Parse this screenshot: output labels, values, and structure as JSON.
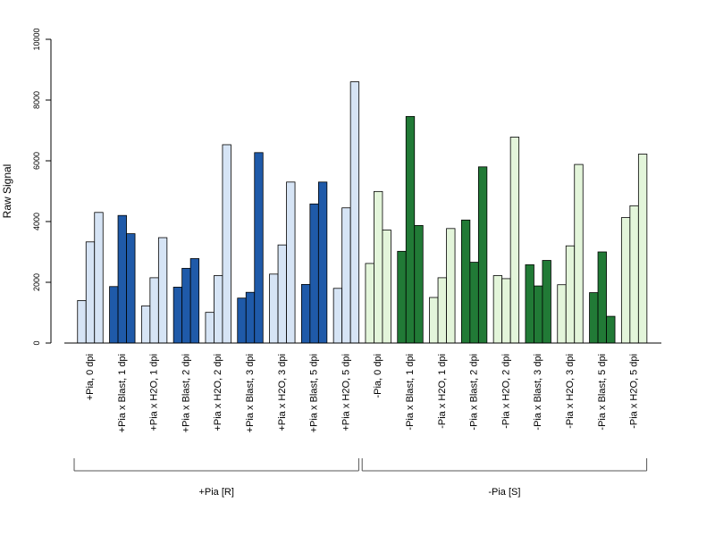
{
  "chart_data": {
    "type": "bar",
    "ylabel": "Raw Signal",
    "ylim": [
      0,
      10000
    ],
    "yticks": [
      0,
      2000,
      4000,
      6000,
      8000,
      10000
    ],
    "grid": false,
    "colors": {
      "light_blue": "#d6e4f5",
      "dark_blue": "#1f5aa9",
      "light_green": "#e3f5da",
      "dark_green": "#217a36",
      "border": "#000000"
    },
    "categories": [
      "+Pia, 0 dpi",
      "+Pia x Blast, 1 dpi",
      "+Pia x H2O, 1 dpi",
      "+Pia x Blast, 2 dpi",
      "+Pia x H2O, 2 dpi",
      "+Pia x Blast, 3 dpi",
      "+Pia x H2O, 3 dpi",
      "+Pia x Blast, 5 dpi",
      "+Pia x H2O, 5 dpi",
      "-Pia, 0 dpi",
      "-Pia x Blast, 1 dpi",
      "-Pia x H2O, 1 dpi",
      "-Pia x Blast, 2 dpi",
      "-Pia x H2O, 2 dpi",
      "-Pia x Blast, 3 dpi",
      "-Pia x H2O, 3 dpi",
      "-Pia x Blast, 5 dpi",
      "-Pia x H2O, 5 dpi"
    ],
    "bar_colors": [
      "light_blue",
      "dark_blue",
      "light_blue",
      "dark_blue",
      "light_blue",
      "dark_blue",
      "light_blue",
      "dark_blue",
      "light_blue",
      "light_green",
      "dark_green",
      "light_green",
      "dark_green",
      "light_green",
      "dark_green",
      "light_green",
      "dark_green",
      "light_green"
    ],
    "values": [
      [
        1400,
        3330,
        4300
      ],
      [
        1860,
        4200,
        3600
      ],
      [
        1220,
        2150,
        3470
      ],
      [
        1840,
        2460,
        2780
      ],
      [
        1010,
        2220,
        6530
      ],
      [
        1480,
        1670,
        6270
      ],
      [
        2270,
        3230,
        5300
      ],
      [
        1930,
        4580,
        5300
      ],
      [
        1800,
        4450,
        8600
      ],
      [
        2620,
        4990,
        3720
      ],
      [
        3020,
        7460,
        3870
      ],
      [
        1500,
        2150,
        3770
      ],
      [
        4050,
        2660,
        5800
      ],
      [
        2220,
        2120,
        6780
      ],
      [
        2580,
        1880,
        2720
      ],
      [
        1920,
        3200,
        5880
      ],
      [
        1660,
        3000,
        880
      ],
      [
        4130,
        4520,
        6220
      ]
    ],
    "groups": [
      {
        "label": "+Pia [R]",
        "from": 0,
        "to": 8
      },
      {
        "label": "-Pia [S]",
        "from": 9,
        "to": 17
      }
    ]
  }
}
